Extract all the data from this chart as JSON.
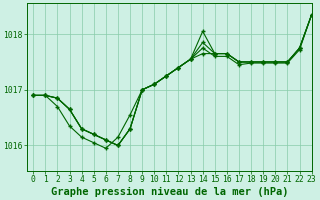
{
  "title": "Graphe pression niveau de la mer (hPa)",
  "background_color": "#cef0e4",
  "grid_color": "#88ccaa",
  "line_color": "#006600",
  "marker_color": "#006600",
  "xlim": [
    -0.5,
    23
  ],
  "ylim": [
    1015.55,
    1018.55
  ],
  "yticks": [
    1016,
    1017,
    1018
  ],
  "xticks": [
    0,
    1,
    2,
    3,
    4,
    5,
    6,
    7,
    8,
    9,
    10,
    11,
    12,
    13,
    14,
    15,
    16,
    17,
    18,
    19,
    20,
    21,
    22,
    23
  ],
  "series": [
    [
      1016.9,
      1016.9,
      1016.85,
      1016.65,
      1016.3,
      1016.2,
      1016.1,
      1016.0,
      1016.3,
      1017.0,
      1017.1,
      1017.25,
      1017.4,
      1017.55,
      1018.05,
      1017.65,
      1017.65,
      1017.5,
      1017.5,
      1017.5,
      1017.5,
      1017.5,
      1017.75,
      1018.35
    ],
    [
      1016.9,
      1016.9,
      1016.85,
      1016.65,
      1016.3,
      1016.2,
      1016.1,
      1016.0,
      1016.3,
      1017.0,
      1017.1,
      1017.25,
      1017.4,
      1017.55,
      1017.85,
      1017.65,
      1017.65,
      1017.5,
      1017.5,
      1017.5,
      1017.5,
      1017.5,
      1017.75,
      1018.35
    ],
    [
      1016.9,
      1016.9,
      1016.85,
      1016.65,
      1016.3,
      1016.2,
      1016.1,
      1016.0,
      1016.3,
      1017.0,
      1017.1,
      1017.25,
      1017.4,
      1017.55,
      1017.65,
      1017.65,
      1017.65,
      1017.5,
      1017.5,
      1017.5,
      1017.5,
      1017.5,
      1017.75,
      1018.35
    ],
    [
      1016.9,
      1016.9,
      1016.7,
      1016.35,
      1016.15,
      1016.05,
      1015.95,
      1016.15,
      1016.55,
      1017.0,
      1017.1,
      1017.25,
      1017.4,
      1017.55,
      1017.75,
      1017.6,
      1017.6,
      1017.45,
      1017.48,
      1017.48,
      1017.48,
      1017.48,
      1017.72,
      1018.35
    ]
  ],
  "title_fontsize": 7.5,
  "tick_fontsize": 5.8
}
